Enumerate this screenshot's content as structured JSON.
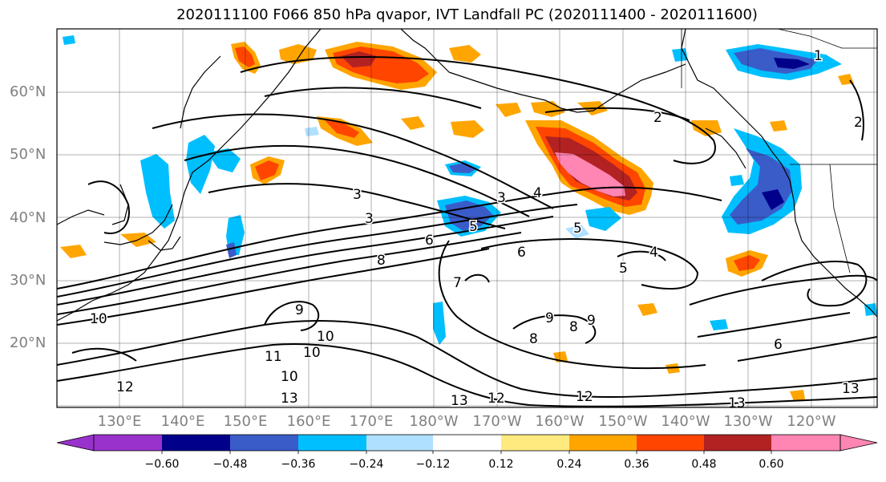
{
  "title": "2020111100 F066 850 hPa qvapor, IVT Landfall PC (2020111400 - 2020111600)",
  "lat_labels": [
    "60°N",
    "50°N",
    "40°N",
    "30°N",
    "20°N"
  ],
  "lon_labels": [
    "130°E",
    "140°E",
    "150°E",
    "160°E",
    "170°E",
    "180°W",
    "170°W",
    "160°W",
    "150°W",
    "140°W",
    "130°W",
    "120°W"
  ],
  "colorbar": {
    "colors": [
      "#9932cc",
      "#00008b",
      "#3a5cc9",
      "#00bfff",
      "#b0e0ff",
      "#ffffff",
      "#ffea80",
      "#ffa500",
      "#ff4500",
      "#b22222",
      "#ff85b3"
    ],
    "ticks": [
      "−0.60",
      "−0.48",
      "−0.36",
      "−0.24",
      "−0.12",
      "0.12",
      "0.24",
      "0.36",
      "0.48",
      "0.60"
    ]
  },
  "contour_labels": [
    "1",
    "2",
    "2",
    "3",
    "3",
    "3",
    "4",
    "4",
    "5",
    "5",
    "5",
    "6",
    "6",
    "6",
    "7",
    "8",
    "8",
    "8",
    "9",
    "9",
    "9",
    "10",
    "10",
    "10",
    "10",
    "11",
    "12",
    "12",
    "12",
    "13",
    "13",
    "13",
    "13"
  ]
}
